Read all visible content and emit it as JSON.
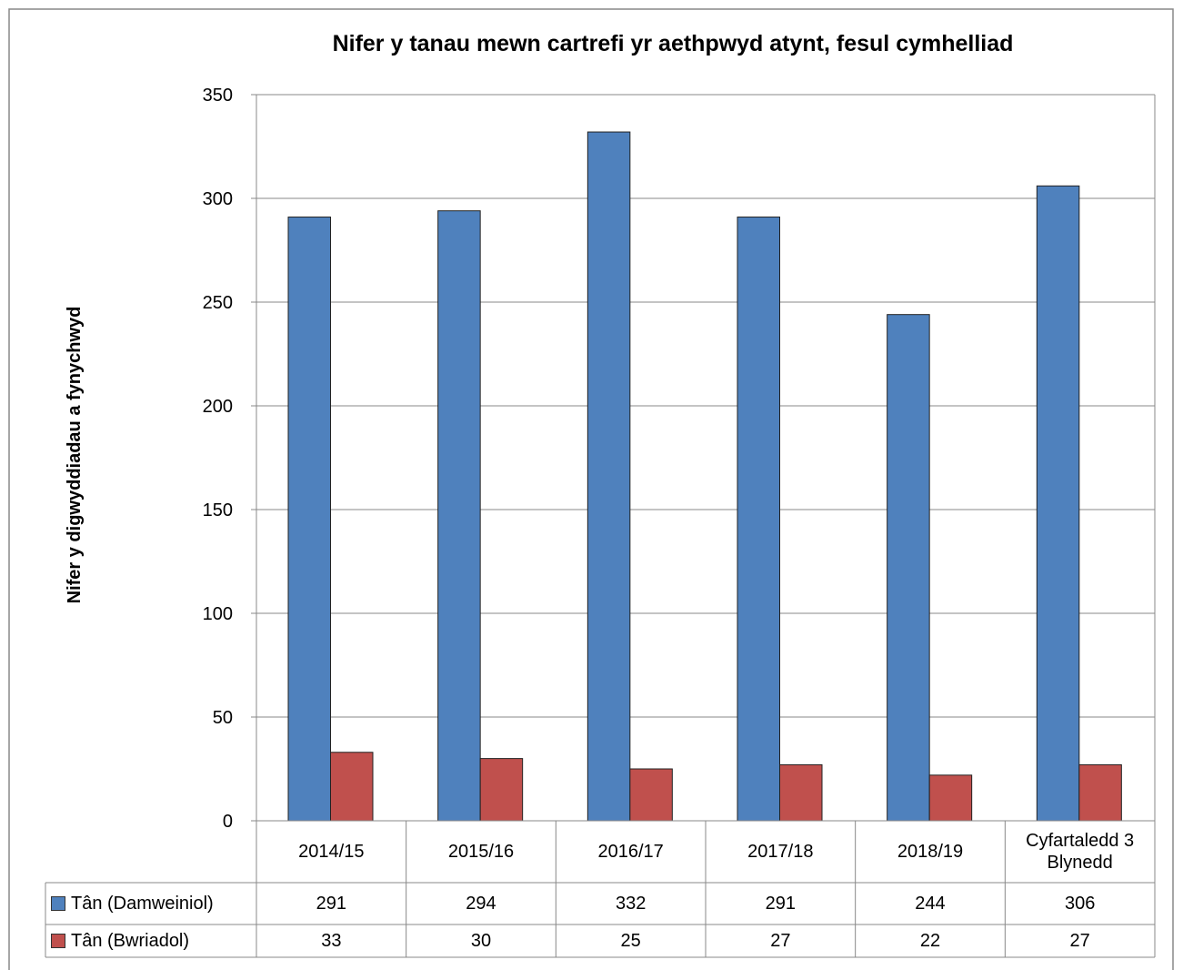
{
  "chart_data": {
    "type": "bar",
    "title": "Nifer y tanau mewn cartrefi yr aethpwyd atynt, fesul cymhelliad",
    "y_label": "Nifer y digwyddiadau a fynychwyd",
    "categories": [
      "2014/15",
      "2015/16",
      "2016/17",
      "2017/18",
      "2018/19",
      "Cyfartaledd 3 Blynedd"
    ],
    "series": [
      {
        "name": "Tân (Damweiniol)",
        "color": "#4f81bd",
        "values": [
          291,
          294,
          332,
          291,
          244,
          306
        ]
      },
      {
        "name": "Tân (Bwriadol)",
        "color": "#c0504d",
        "values": [
          33,
          30,
          25,
          27,
          22,
          27
        ]
      }
    ],
    "ylim": [
      0,
      350
    ],
    "yticks": [
      0,
      50,
      100,
      150,
      200,
      250,
      300,
      350
    ],
    "grid": true
  }
}
